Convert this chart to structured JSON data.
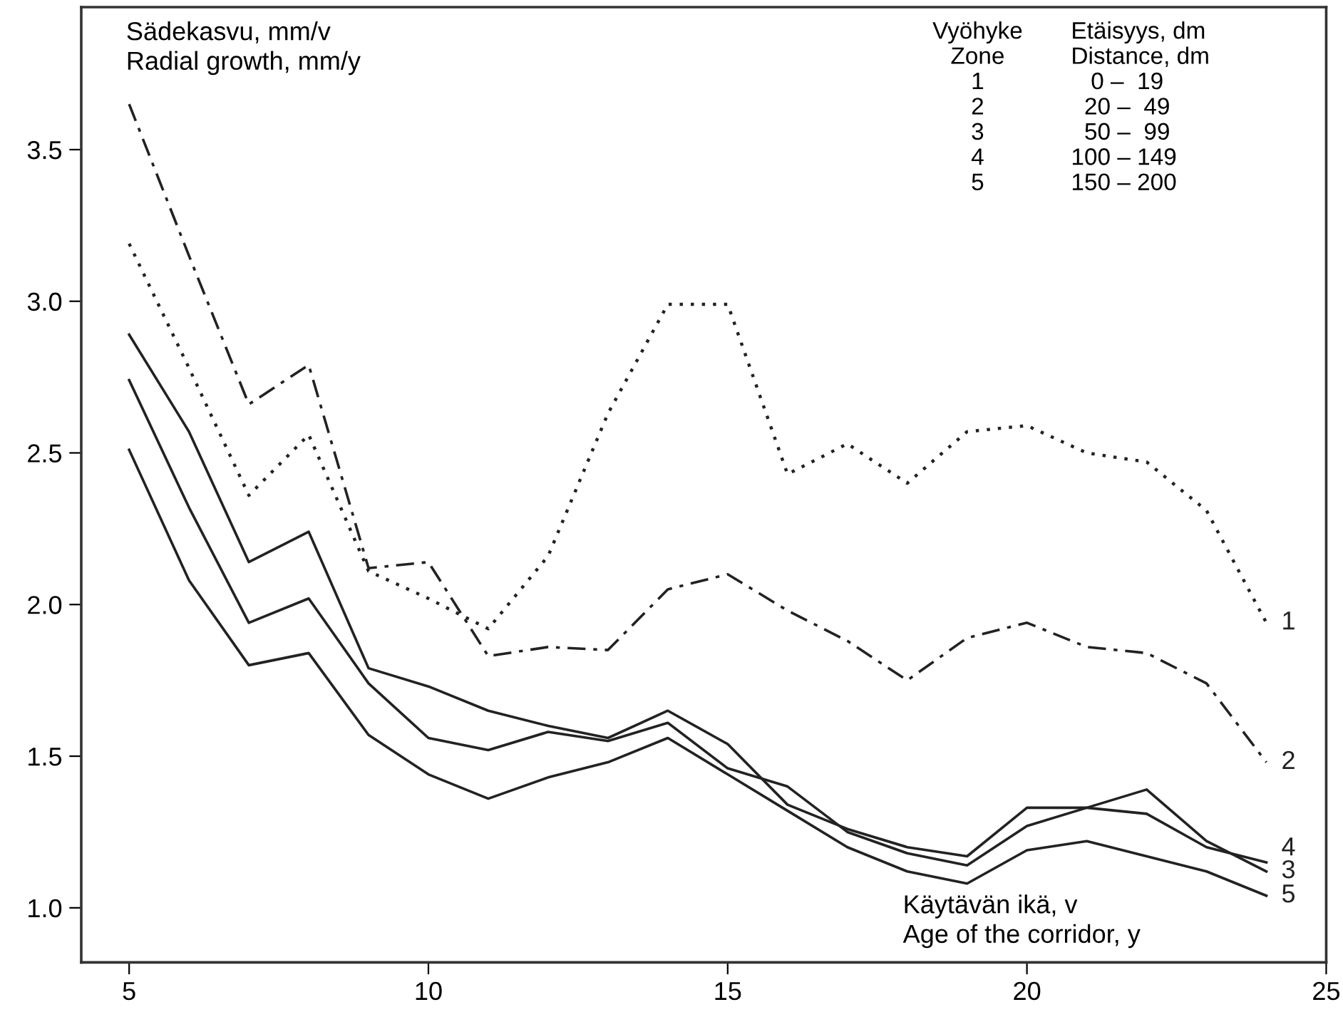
{
  "chart_data": {
    "type": "line",
    "ylabel": "Sädekasvu, mm/v\nRadial growth, mm/y",
    "xlabel": "Käytävän ikä, v\nAge of the corridor, y",
    "x": [
      5,
      6,
      7,
      8,
      9,
      10,
      11,
      12,
      13,
      14,
      15,
      16,
      17,
      18,
      19,
      20,
      21,
      22,
      23,
      24
    ],
    "series": [
      {
        "name": "1",
        "color": "#222222",
        "line_style": "dotted",
        "values": [
          3.19,
          2.78,
          2.36,
          2.56,
          2.11,
          2.02,
          1.92,
          2.16,
          2.63,
          2.99,
          2.99,
          2.43,
          2.53,
          2.4,
          2.57,
          2.59,
          2.5,
          2.47,
          2.31,
          1.94
        ]
      },
      {
        "name": "2",
        "color": "#222222",
        "line_style": "dashed",
        "values": [
          3.65,
          3.15,
          2.66,
          2.79,
          2.12,
          2.14,
          1.83,
          1.86,
          1.85,
          2.05,
          2.1,
          1.98,
          1.88,
          1.75,
          1.89,
          1.94,
          1.86,
          1.84,
          1.74,
          1.48
        ]
      },
      {
        "name": "3",
        "color": "#222222",
        "line_style": "solid",
        "values": [
          2.74,
          2.32,
          1.94,
          2.02,
          1.74,
          1.56,
          1.52,
          1.58,
          1.55,
          1.61,
          1.46,
          1.4,
          1.25,
          1.18,
          1.14,
          1.27,
          1.33,
          1.39,
          1.22,
          1.12
        ]
      },
      {
        "name": "4",
        "color": "#222222",
        "line_style": "solid",
        "values": [
          2.89,
          2.57,
          2.14,
          2.24,
          1.79,
          1.73,
          1.65,
          1.6,
          1.56,
          1.65,
          1.54,
          1.34,
          1.26,
          1.2,
          1.17,
          1.33,
          1.33,
          1.31,
          1.2,
          1.15
        ]
      },
      {
        "name": "5",
        "color": "#222222",
        "line_style": "solid",
        "values": [
          2.51,
          2.08,
          1.8,
          1.84,
          1.57,
          1.44,
          1.36,
          1.43,
          1.48,
          1.56,
          1.44,
          1.32,
          1.2,
          1.12,
          1.08,
          1.19,
          1.22,
          1.17,
          1.12,
          1.04
        ]
      }
    ],
    "xlim": [
      4.2,
      25
    ],
    "ylim": [
      0.82,
      3.97
    ],
    "xticks": [
      5,
      10,
      15,
      20,
      25
    ],
    "yticks": [
      {
        "value": 1,
        "label": "1.0"
      },
      {
        "value": 1.5,
        "label": "1.5"
      },
      {
        "value": 2,
        "label": "2.0"
      },
      {
        "value": 2.5,
        "label": "2.5"
      },
      {
        "value": 3,
        "label": "3.0"
      },
      {
        "value": 3.5,
        "label": "3.5"
      }
    ],
    "annotations": [
      "Vyöhyke\nZone\n1\n2\n3\n4\n5",
      "Etäisyys, dm\nDistance, dm\n   0 –  19\n  20 –  49\n  50 –  99\n100 – 149\n150 – 200"
    ],
    "grid": false,
    "legend": false,
    "marker": "none"
  }
}
